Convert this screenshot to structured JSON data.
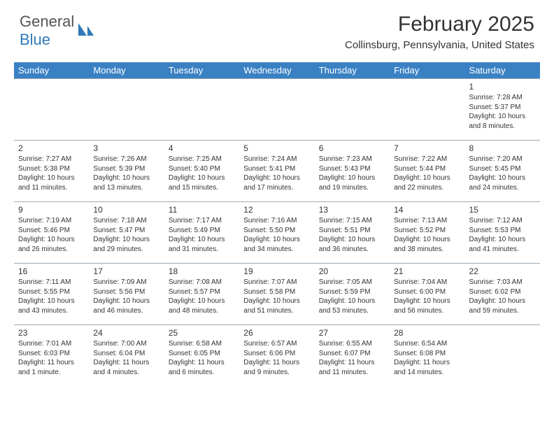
{
  "brand": {
    "part1": "General",
    "part2": "Blue",
    "text_color": "#555555",
    "accent_color": "#2f79ba"
  },
  "header": {
    "title": "February 2025",
    "location": "Collinsburg, Pennsylvania, United States",
    "title_fontsize": 30,
    "location_fontsize": 15
  },
  "calendar": {
    "header_bg": "#3a81c4",
    "header_fg": "#ffffff",
    "border_color": "#9da9b5",
    "day_headers": [
      "Sunday",
      "Monday",
      "Tuesday",
      "Wednesday",
      "Thursday",
      "Friday",
      "Saturday"
    ],
    "weeks": [
      [
        null,
        null,
        null,
        null,
        null,
        null,
        {
          "d": "1",
          "sr": "Sunrise: 7:28 AM",
          "ss": "Sunset: 5:37 PM",
          "dl": "Daylight: 10 hours and 8 minutes."
        }
      ],
      [
        {
          "d": "2",
          "sr": "Sunrise: 7:27 AM",
          "ss": "Sunset: 5:38 PM",
          "dl": "Daylight: 10 hours and 11 minutes."
        },
        {
          "d": "3",
          "sr": "Sunrise: 7:26 AM",
          "ss": "Sunset: 5:39 PM",
          "dl": "Daylight: 10 hours and 13 minutes."
        },
        {
          "d": "4",
          "sr": "Sunrise: 7:25 AM",
          "ss": "Sunset: 5:40 PM",
          "dl": "Daylight: 10 hours and 15 minutes."
        },
        {
          "d": "5",
          "sr": "Sunrise: 7:24 AM",
          "ss": "Sunset: 5:41 PM",
          "dl": "Daylight: 10 hours and 17 minutes."
        },
        {
          "d": "6",
          "sr": "Sunrise: 7:23 AM",
          "ss": "Sunset: 5:43 PM",
          "dl": "Daylight: 10 hours and 19 minutes."
        },
        {
          "d": "7",
          "sr": "Sunrise: 7:22 AM",
          "ss": "Sunset: 5:44 PM",
          "dl": "Daylight: 10 hours and 22 minutes."
        },
        {
          "d": "8",
          "sr": "Sunrise: 7:20 AM",
          "ss": "Sunset: 5:45 PM",
          "dl": "Daylight: 10 hours and 24 minutes."
        }
      ],
      [
        {
          "d": "9",
          "sr": "Sunrise: 7:19 AM",
          "ss": "Sunset: 5:46 PM",
          "dl": "Daylight: 10 hours and 26 minutes."
        },
        {
          "d": "10",
          "sr": "Sunrise: 7:18 AM",
          "ss": "Sunset: 5:47 PM",
          "dl": "Daylight: 10 hours and 29 minutes."
        },
        {
          "d": "11",
          "sr": "Sunrise: 7:17 AM",
          "ss": "Sunset: 5:49 PM",
          "dl": "Daylight: 10 hours and 31 minutes."
        },
        {
          "d": "12",
          "sr": "Sunrise: 7:16 AM",
          "ss": "Sunset: 5:50 PM",
          "dl": "Daylight: 10 hours and 34 minutes."
        },
        {
          "d": "13",
          "sr": "Sunrise: 7:15 AM",
          "ss": "Sunset: 5:51 PM",
          "dl": "Daylight: 10 hours and 36 minutes."
        },
        {
          "d": "14",
          "sr": "Sunrise: 7:13 AM",
          "ss": "Sunset: 5:52 PM",
          "dl": "Daylight: 10 hours and 38 minutes."
        },
        {
          "d": "15",
          "sr": "Sunrise: 7:12 AM",
          "ss": "Sunset: 5:53 PM",
          "dl": "Daylight: 10 hours and 41 minutes."
        }
      ],
      [
        {
          "d": "16",
          "sr": "Sunrise: 7:11 AM",
          "ss": "Sunset: 5:55 PM",
          "dl": "Daylight: 10 hours and 43 minutes."
        },
        {
          "d": "17",
          "sr": "Sunrise: 7:09 AM",
          "ss": "Sunset: 5:56 PM",
          "dl": "Daylight: 10 hours and 46 minutes."
        },
        {
          "d": "18",
          "sr": "Sunrise: 7:08 AM",
          "ss": "Sunset: 5:57 PM",
          "dl": "Daylight: 10 hours and 48 minutes."
        },
        {
          "d": "19",
          "sr": "Sunrise: 7:07 AM",
          "ss": "Sunset: 5:58 PM",
          "dl": "Daylight: 10 hours and 51 minutes."
        },
        {
          "d": "20",
          "sr": "Sunrise: 7:05 AM",
          "ss": "Sunset: 5:59 PM",
          "dl": "Daylight: 10 hours and 53 minutes."
        },
        {
          "d": "21",
          "sr": "Sunrise: 7:04 AM",
          "ss": "Sunset: 6:00 PM",
          "dl": "Daylight: 10 hours and 56 minutes."
        },
        {
          "d": "22",
          "sr": "Sunrise: 7:03 AM",
          "ss": "Sunset: 6:02 PM",
          "dl": "Daylight: 10 hours and 59 minutes."
        }
      ],
      [
        {
          "d": "23",
          "sr": "Sunrise: 7:01 AM",
          "ss": "Sunset: 6:03 PM",
          "dl": "Daylight: 11 hours and 1 minute."
        },
        {
          "d": "24",
          "sr": "Sunrise: 7:00 AM",
          "ss": "Sunset: 6:04 PM",
          "dl": "Daylight: 11 hours and 4 minutes."
        },
        {
          "d": "25",
          "sr": "Sunrise: 6:58 AM",
          "ss": "Sunset: 6:05 PM",
          "dl": "Daylight: 11 hours and 6 minutes."
        },
        {
          "d": "26",
          "sr": "Sunrise: 6:57 AM",
          "ss": "Sunset: 6:06 PM",
          "dl": "Daylight: 11 hours and 9 minutes."
        },
        {
          "d": "27",
          "sr": "Sunrise: 6:55 AM",
          "ss": "Sunset: 6:07 PM",
          "dl": "Daylight: 11 hours and 11 minutes."
        },
        {
          "d": "28",
          "sr": "Sunrise: 6:54 AM",
          "ss": "Sunset: 6:08 PM",
          "dl": "Daylight: 11 hours and 14 minutes."
        },
        null
      ]
    ]
  }
}
